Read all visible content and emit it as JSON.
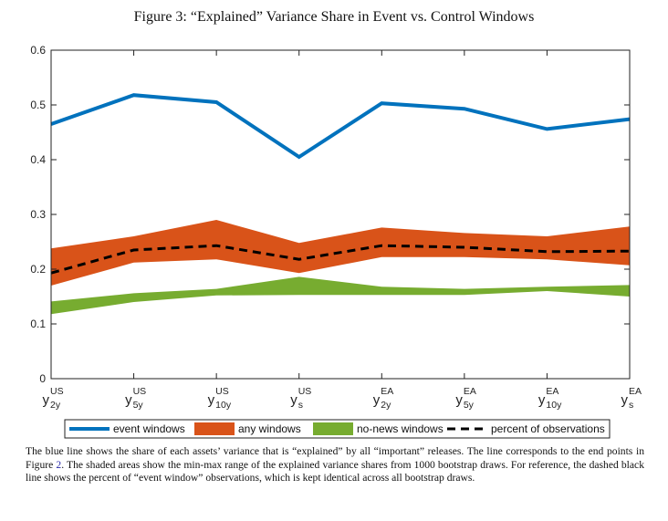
{
  "figure": {
    "title": "Figure 3: “Explained” Variance Share in Event vs. Control Windows",
    "caption": {
      "before_ref": "The blue line shows the share of each assets’ variance that is “explained” by all “important” releases. The line corresponds to the end points in Figure ",
      "ref": "2",
      "after_ref": ". The shaded areas show the min-max range of the explained variance shares from 1000 bootstrap draws. For reference, the dashed black line shows the percent of “event window” observations, which is kept identical across all bootstrap draws."
    }
  },
  "chart_data": {
    "type": "line",
    "categories": [
      {
        "base": "y",
        "sup": "US",
        "sub": "2y"
      },
      {
        "base": "y",
        "sup": "US",
        "sub": "5y"
      },
      {
        "base": "y",
        "sup": "US",
        "sub": "10y"
      },
      {
        "base": "y",
        "sup": "US",
        "sub": "s"
      },
      {
        "base": "y",
        "sup": "EA",
        "sub": "2y"
      },
      {
        "base": "y",
        "sup": "EA",
        "sub": "5y"
      },
      {
        "base": "y",
        "sup": "EA",
        "sub": "10y"
      },
      {
        "base": "y",
        "sup": "EA",
        "sub": "s"
      }
    ],
    "ylim": [
      0,
      0.6
    ],
    "yticks": [
      0,
      0.1,
      0.2,
      0.3,
      0.4,
      0.5,
      0.6
    ],
    "ytick_labels": [
      "0",
      "0.1",
      "0.2",
      "0.3",
      "0.4",
      "0.5",
      "0.6"
    ],
    "grid": false,
    "legend_position": "bottom",
    "series": [
      {
        "name": "event windows",
        "kind": "line",
        "color": "#0072BD",
        "values": [
          0.465,
          0.518,
          0.505,
          0.405,
          0.503,
          0.493,
          0.456,
          0.474
        ]
      },
      {
        "name": "any windows",
        "kind": "band",
        "color": "#D95319",
        "lower": [
          0.17,
          0.212,
          0.218,
          0.193,
          0.222,
          0.222,
          0.218,
          0.207
        ],
        "upper": [
          0.238,
          0.26,
          0.29,
          0.248,
          0.276,
          0.266,
          0.26,
          0.278
        ]
      },
      {
        "name": "no-news windows",
        "kind": "band",
        "color": "#77AC30",
        "lower": [
          0.118,
          0.14,
          0.152,
          0.153,
          0.153,
          0.153,
          0.16,
          0.15
        ],
        "upper": [
          0.141,
          0.156,
          0.164,
          0.186,
          0.168,
          0.164,
          0.168,
          0.171
        ]
      },
      {
        "name": "percent of observations",
        "kind": "dashed",
        "color": "#000000",
        "values": [
          0.193,
          0.235,
          0.243,
          0.218,
          0.243,
          0.24,
          0.232,
          0.233
        ]
      }
    ]
  }
}
